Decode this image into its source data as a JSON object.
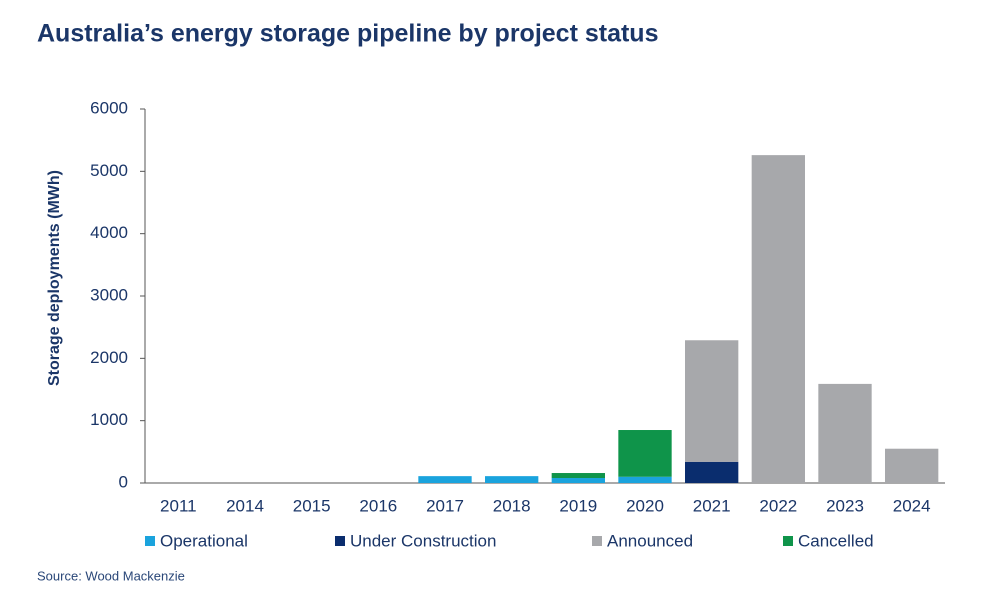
{
  "chart_data": {
    "type": "stacked_bar",
    "title": "Australia’s energy storage pipeline by project status",
    "y_label": "Storage deployments (MWh)",
    "source": "Source: Wood Mackenzie",
    "categories": [
      "2011",
      "2014",
      "2015",
      "2016",
      "2017",
      "2018",
      "2019",
      "2020",
      "2021",
      "2022",
      "2023",
      "2024"
    ],
    "series": [
      {
        "name": "Operational",
        "color": "#1aa3dd",
        "values": [
          0,
          0,
          0,
          0,
          110,
          110,
          80,
          100,
          0,
          0,
          0,
          0
        ]
      },
      {
        "name": "Under Construction",
        "color": "#0a2d6e",
        "values": [
          0,
          0,
          0,
          0,
          0,
          0,
          0,
          0,
          340,
          0,
          0,
          0
        ]
      },
      {
        "name": "Announced",
        "color": "#a7a8ab",
        "values": [
          0,
          0,
          0,
          0,
          0,
          0,
          0,
          0,
          1950,
          5260,
          1590,
          550
        ]
      },
      {
        "name": "Cancelled",
        "color": "#0f944a",
        "values": [
          0,
          0,
          0,
          0,
          0,
          0,
          80,
          750,
          0,
          0,
          0,
          0
        ]
      }
    ],
    "ylim": [
      0,
      6000
    ],
    "yticks": [
      0,
      1000,
      2000,
      3000,
      4000,
      5000,
      6000
    ],
    "grid": false
  }
}
